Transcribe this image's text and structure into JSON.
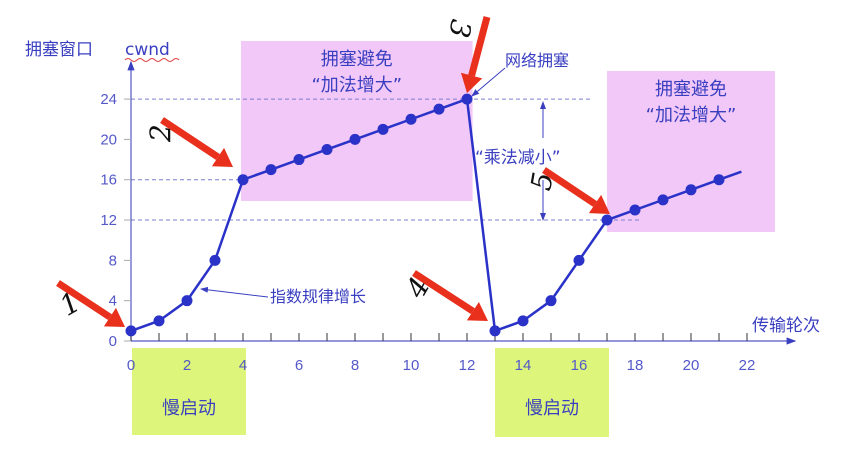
{
  "chart_data": {
    "type": "line",
    "title": "",
    "ylabel": "拥塞窗口",
    "ylabel_unit": "cwnd",
    "xlabel": "传输轮次",
    "xlim": [
      0,
      22
    ],
    "ylim": [
      0,
      24
    ],
    "x_ticks": [
      0,
      2,
      4,
      6,
      8,
      10,
      12,
      14,
      16,
      18,
      20,
      22
    ],
    "y_ticks": [
      0,
      4,
      8,
      12,
      16,
      20,
      24
    ],
    "series": [
      {
        "name": "cwnd",
        "x": [
          0,
          1,
          2,
          3,
          4,
          5,
          6,
          7,
          8,
          9,
          10,
          11,
          12,
          13,
          14,
          15,
          16,
          17,
          18,
          19,
          20,
          21
        ],
        "values": [
          1,
          2,
          4,
          8,
          16,
          17,
          18,
          19,
          20,
          21,
          22,
          23,
          24,
          1,
          2,
          4,
          8,
          12,
          13,
          14,
          15,
          16
        ],
        "line_end": [
          21.8,
          16.8
        ]
      }
    ],
    "regions": [
      {
        "label1": "拥塞避免",
        "label2": "“加法增大”",
        "x_range": [
          4,
          12.2
        ],
        "color": "#f2c8f8"
      },
      {
        "label1": "拥塞避免",
        "label2": "“加法增大”",
        "x_range": [
          17,
          23
        ],
        "color": "#f2c8f8"
      },
      {
        "label": "慢启动",
        "x_range": [
          0,
          4
        ],
        "color": "#dcf57a"
      },
      {
        "label": "慢启动",
        "x_range": [
          13,
          17
        ],
        "color": "#dcf57a"
      }
    ],
    "thresholds": [
      24,
      16,
      12
    ],
    "annotations": {
      "congestion": "网络拥塞",
      "mult_decrease": "“乘法减小”",
      "exp_growth": "指数规律增长"
    },
    "markers": [
      "1",
      "2",
      "3",
      "4",
      "5"
    ],
    "colors": {
      "line": "#2a32c8",
      "arrow": "#e8301c",
      "text": "#3a3fc0"
    }
  }
}
